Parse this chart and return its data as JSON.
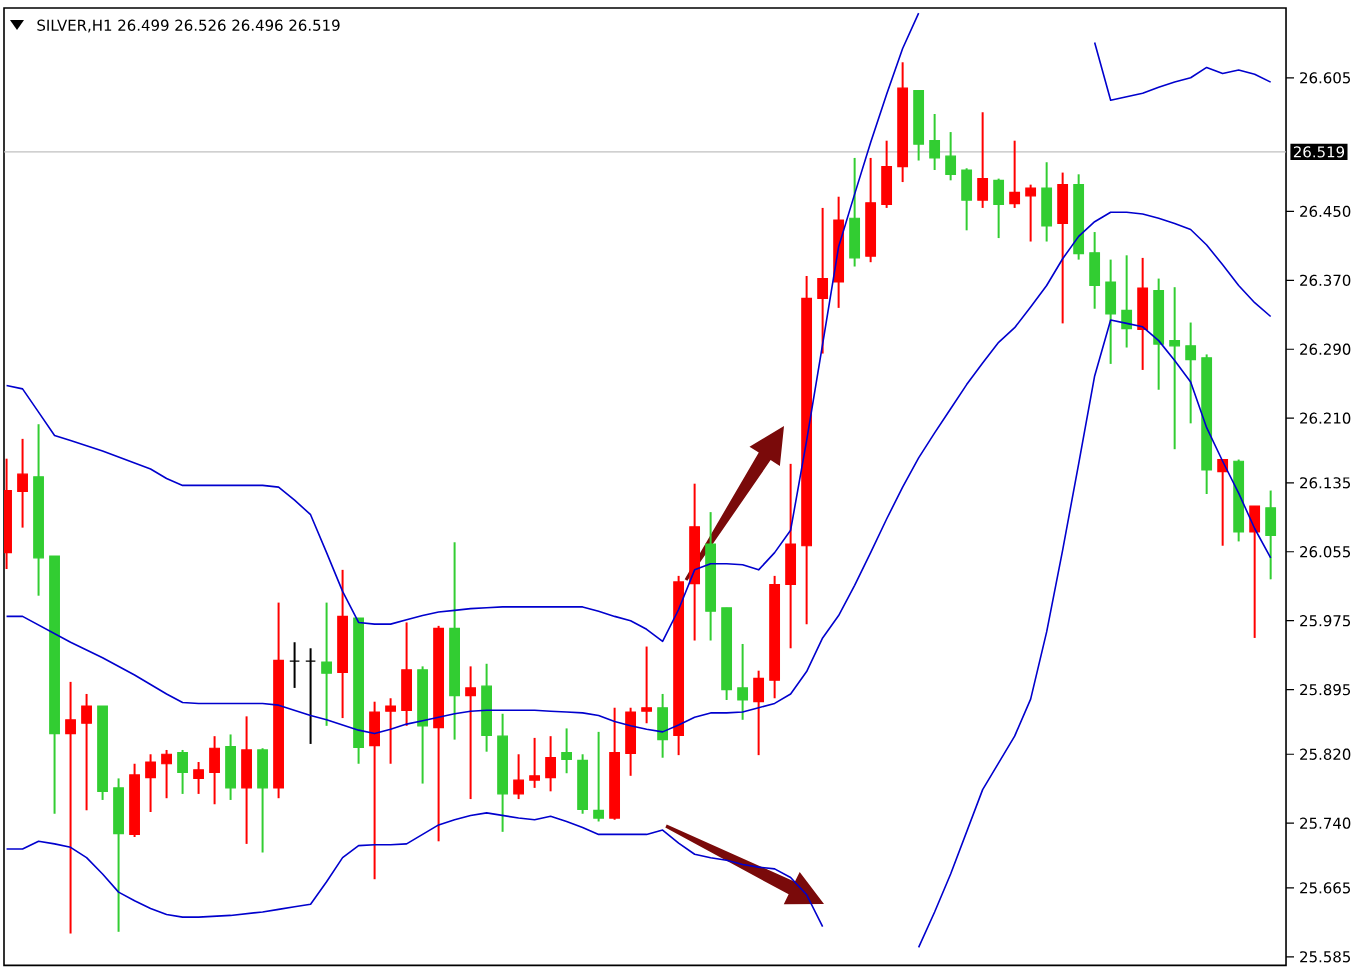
{
  "chart_data": {
    "type": "candlestick",
    "title": "SILVER,H1  26.499 26.526 26.496 26.519",
    "categories": [
      null,
      null,
      null,
      null,
      null,
      null,
      null,
      null,
      null,
      null,
      null,
      null,
      null,
      null,
      null,
      null,
      null,
      null,
      null,
      null,
      null,
      null,
      null,
      null,
      null,
      null,
      null,
      null,
      null,
      null,
      null,
      null,
      null,
      null,
      null,
      null,
      null,
      null,
      null,
      null,
      null,
      null,
      null,
      null,
      null,
      null,
      null,
      null,
      null,
      null,
      null,
      null,
      null,
      null,
      null,
      null,
      null,
      null,
      null,
      null,
      null,
      null,
      null,
      null,
      null,
      null,
      null,
      null,
      null,
      null,
      null,
      null,
      null,
      null,
      null,
      null,
      null,
      null,
      null,
      null
    ],
    "ohlc": [
      [
        26.054,
        26.163,
        26.035,
        26.126
      ],
      [
        26.125,
        26.186,
        26.083,
        26.145
      ],
      [
        26.142,
        26.203,
        26.004,
        26.048
      ],
      [
        26.05,
        26.05,
        25.751,
        25.844
      ],
      [
        25.844,
        25.904,
        25.612,
        25.86
      ],
      [
        25.856,
        25.89,
        25.755,
        25.876
      ],
      [
        25.876,
        25.876,
        25.767,
        25.777
      ],
      [
        25.781,
        25.792,
        25.614,
        25.728
      ],
      [
        25.727,
        25.809,
        25.724,
        25.796
      ],
      [
        25.793,
        25.82,
        25.753,
        25.811
      ],
      [
        25.809,
        25.825,
        25.769,
        25.82
      ],
      [
        25.822,
        25.825,
        25.774,
        25.799
      ],
      [
        25.792,
        25.811,
        25.774,
        25.802
      ],
      [
        25.799,
        25.841,
        25.762,
        25.827
      ],
      [
        25.829,
        25.843,
        25.767,
        25.781
      ],
      [
        25.781,
        25.864,
        25.716,
        25.825
      ],
      [
        25.825,
        25.827,
        25.706,
        25.781
      ],
      [
        25.781,
        25.996,
        25.769,
        25.929
      ],
      [
        25.928,
        25.95,
        25.897,
        25.928
      ],
      [
        25.928,
        25.943,
        25.832,
        25.928
      ],
      [
        25.927,
        25.996,
        25.853,
        25.914
      ],
      [
        25.915,
        26.034,
        25.862,
        25.98
      ],
      [
        25.978,
        25.978,
        25.809,
        25.828
      ],
      [
        25.83,
        25.881,
        25.675,
        25.869
      ],
      [
        25.87,
        25.885,
        25.809,
        25.876
      ],
      [
        25.871,
        25.973,
        25.853,
        25.918
      ],
      [
        25.918,
        25.922,
        25.786,
        25.853
      ],
      [
        25.851,
        25.969,
        25.719,
        25.966
      ],
      [
        25.966,
        26.066,
        25.837,
        25.888
      ],
      [
        25.888,
        25.922,
        25.768,
        25.897
      ],
      [
        25.899,
        25.925,
        25.823,
        25.842
      ],
      [
        25.841,
        25.867,
        25.73,
        25.774
      ],
      [
        25.774,
        25.82,
        25.768,
        25.79
      ],
      [
        25.79,
        25.839,
        25.781,
        25.795
      ],
      [
        25.793,
        25.841,
        25.777,
        25.816
      ],
      [
        25.822,
        25.85,
        25.798,
        25.814
      ],
      [
        25.813,
        25.82,
        25.751,
        25.756
      ],
      [
        25.755,
        25.846,
        25.742,
        25.746
      ],
      [
        25.746,
        25.874,
        25.744,
        25.822
      ],
      [
        25.821,
        25.874,
        25.795,
        25.869
      ],
      [
        25.87,
        25.945,
        25.856,
        25.874
      ],
      [
        25.874,
        25.89,
        25.816,
        25.837
      ],
      [
        25.842,
        26.027,
        25.819,
        26.02
      ],
      [
        26.018,
        26.134,
        25.952,
        26.084
      ],
      [
        26.064,
        26.101,
        25.952,
        25.986
      ],
      [
        25.99,
        25.99,
        25.883,
        25.895
      ],
      [
        25.897,
        25.948,
        25.86,
        25.883
      ],
      [
        25.881,
        25.917,
        25.819,
        25.908
      ],
      [
        25.906,
        26.027,
        25.885,
        26.017
      ],
      [
        26.017,
        26.157,
        25.943,
        26.064
      ],
      [
        26.062,
        26.375,
        25.971,
        26.349
      ],
      [
        26.349,
        26.454,
        26.285,
        26.372
      ],
      [
        26.368,
        26.467,
        26.338,
        26.44
      ],
      [
        26.442,
        26.512,
        26.386,
        26.396
      ],
      [
        26.398,
        26.512,
        26.391,
        26.46
      ],
      [
        26.458,
        26.532,
        26.454,
        26.502
      ],
      [
        26.502,
        26.623,
        26.484,
        26.593
      ],
      [
        26.59,
        26.59,
        26.509,
        26.528
      ],
      [
        26.532,
        26.563,
        26.498,
        26.512
      ],
      [
        26.514,
        26.542,
        26.486,
        26.493
      ],
      [
        26.498,
        26.5,
        26.428,
        26.463
      ],
      [
        26.463,
        26.565,
        26.454,
        26.488
      ],
      [
        26.486,
        26.488,
        26.419,
        26.458
      ],
      [
        26.459,
        26.532,
        26.454,
        26.472
      ],
      [
        26.468,
        26.481,
        26.415,
        26.477
      ],
      [
        26.477,
        26.507,
        26.415,
        26.433
      ],
      [
        26.436,
        26.495,
        26.32,
        26.481
      ],
      [
        26.481,
        26.493,
        26.394,
        26.401
      ],
      [
        26.402,
        26.426,
        26.337,
        26.364
      ],
      [
        26.368,
        26.394,
        26.273,
        26.331
      ],
      [
        26.335,
        26.399,
        26.292,
        26.314
      ],
      [
        26.313,
        26.396,
        26.266,
        26.361
      ],
      [
        26.358,
        26.372,
        26.243,
        26.296
      ],
      [
        26.3,
        26.362,
        26.174,
        26.294
      ],
      [
        26.294,
        26.321,
        26.204,
        26.278
      ],
      [
        26.28,
        26.284,
        26.122,
        26.15
      ],
      [
        26.148,
        26.162,
        26.062,
        26.162
      ],
      [
        26.16,
        26.162,
        26.067,
        26.078
      ],
      [
        26.078,
        26.108,
        25.955,
        26.108
      ],
      [
        26.106,
        26.126,
        26.023,
        26.074
      ]
    ],
    "colors": [
      "#ff0000",
      "#ff0000",
      "#32cd32",
      "#32cd32",
      "#ff0000",
      "#ff0000",
      "#32cd32",
      "#32cd32",
      "#ff0000",
      "#ff0000",
      "#ff0000",
      "#32cd32",
      "#ff0000",
      "#ff0000",
      "#32cd32",
      "#ff0000",
      "#32cd32",
      "#ff0000",
      "#000000",
      "#000000",
      "#32cd32",
      "#ff0000",
      "#32cd32",
      "#ff0000",
      "#ff0000",
      "#ff0000",
      "#32cd32",
      "#ff0000",
      "#32cd32",
      "#ff0000",
      "#32cd32",
      "#32cd32",
      "#ff0000",
      "#ff0000",
      "#ff0000",
      "#32cd32",
      "#32cd32",
      "#32cd32",
      "#ff0000",
      "#ff0000",
      "#ff0000",
      "#32cd32",
      "#ff0000",
      "#ff0000",
      "#32cd32",
      "#32cd32",
      "#32cd32",
      "#ff0000",
      "#ff0000",
      "#ff0000",
      "#ff0000",
      "#ff0000",
      "#ff0000",
      "#32cd32",
      "#ff0000",
      "#ff0000",
      "#ff0000",
      "#32cd32",
      "#32cd32",
      "#32cd32",
      "#32cd32",
      "#ff0000",
      "#32cd32",
      "#ff0000",
      "#ff0000",
      "#32cd32",
      "#ff0000",
      "#32cd32",
      "#32cd32",
      "#32cd32",
      "#32cd32",
      "#ff0000",
      "#32cd32",
      "#32cd32",
      "#32cd32",
      "#32cd32",
      "#ff0000",
      "#32cd32",
      "#ff0000",
      "#32cd32"
    ],
    "series": [
      {
        "type": "line",
        "color": "#0000cd",
        "values": [
          26.248,
          26.244,
          26.217,
          26.19,
          26.184,
          26.178,
          26.172,
          26.165,
          26.158,
          26.151,
          26.14,
          26.132,
          26.132,
          26.132,
          26.132,
          26.132,
          26.132,
          26.13,
          26.115,
          26.098,
          26.054,
          26.009,
          25.973,
          25.971,
          25.971,
          25.976,
          25.981,
          25.985,
          25.987,
          25.989,
          25.99,
          25.991,
          25.991,
          25.991,
          25.991,
          25.991,
          25.991,
          25.986,
          25.98,
          25.975,
          25.965,
          25.951,
          25.988,
          26.034,
          26.041,
          26.041,
          26.04,
          26.034,
          26.054,
          26.08,
          26.184,
          26.296,
          26.409,
          26.47,
          26.53,
          26.586,
          26.639,
          26.68,
          null,
          null,
          null,
          null,
          null,
          null,
          null,
          null,
          null,
          null,
          26.646,
          26.579,
          26.583,
          26.587,
          26.594,
          26.6,
          26.605,
          26.617,
          26.61,
          26.614,
          26.609,
          26.6
        ]
      },
      {
        "type": "line",
        "color": "#0000cd",
        "values": [
          25.98,
          25.98,
          25.97,
          25.96,
          25.95,
          25.941,
          25.932,
          25.922,
          25.912,
          25.901,
          25.89,
          25.88,
          25.879,
          25.879,
          25.879,
          25.879,
          25.879,
          25.877,
          25.871,
          25.865,
          25.86,
          25.854,
          25.848,
          25.844,
          25.849,
          25.855,
          25.859,
          25.863,
          25.867,
          25.87,
          25.871,
          25.871,
          25.871,
          25.871,
          25.87,
          25.869,
          25.868,
          25.865,
          25.858,
          25.853,
          25.849,
          25.846,
          25.854,
          25.863,
          25.868,
          25.868,
          25.869,
          25.874,
          25.879,
          25.89,
          25.916,
          25.955,
          25.981,
          26.016,
          26.054,
          26.093,
          26.13,
          26.164,
          26.193,
          26.221,
          26.249,
          26.274,
          26.298,
          26.315,
          26.339,
          26.364,
          26.395,
          26.421,
          26.438,
          26.449,
          26.449,
          26.447,
          26.442,
          26.436,
          26.429,
          26.411,
          26.388,
          26.364,
          26.344,
          26.328
        ]
      },
      {
        "type": "line",
        "color": "#0000cd",
        "values": [
          25.71,
          25.71,
          25.719,
          25.716,
          25.712,
          25.7,
          25.681,
          25.66,
          25.65,
          25.641,
          25.634,
          25.631,
          25.631,
          25.632,
          25.633,
          25.635,
          25.637,
          25.64,
          25.643,
          25.646,
          25.672,
          25.7,
          25.714,
          25.715,
          25.715,
          25.716,
          25.727,
          25.738,
          25.744,
          25.749,
          25.752,
          25.749,
          25.746,
          25.744,
          25.748,
          25.742,
          25.735,
          25.727,
          25.727,
          25.727,
          25.727,
          25.732,
          25.717,
          25.704,
          25.7,
          25.697,
          25.692,
          25.689,
          25.687,
          25.677,
          25.657,
          25.62,
          null,
          null,
          null,
          null,
          null,
          25.596,
          25.637,
          25.681,
          25.73,
          25.779,
          25.81,
          25.841,
          25.884,
          25.962,
          26.057,
          26.157,
          26.259,
          26.324,
          26.32,
          26.316,
          26.3,
          26.277,
          26.252,
          26.199,
          26.16,
          26.123,
          26.082,
          26.048
        ]
      }
    ],
    "ylim": [
      25.575,
      26.686
    ],
    "yticks": [
      {
        "value": 25.585,
        "label": "25.585"
      },
      {
        "value": 25.665,
        "label": "25.665"
      },
      {
        "value": 25.74,
        "label": "25.740"
      },
      {
        "value": 25.82,
        "label": "25.820"
      },
      {
        "value": 25.895,
        "label": "25.895"
      },
      {
        "value": 25.975,
        "label": "25.975"
      },
      {
        "value": 26.055,
        "label": "26.055"
      },
      {
        "value": 26.135,
        "label": "26.135"
      },
      {
        "value": 26.21,
        "label": "26.210"
      },
      {
        "value": 26.29,
        "label": "26.290"
      },
      {
        "value": 26.37,
        "label": "26.370"
      },
      {
        "value": 26.45,
        "label": "26.450"
      },
      {
        "value": 26.605,
        "label": "26.605"
      }
    ],
    "ref_lines": [
      {
        "axis": "y",
        "value": 26.519,
        "label": "26.519",
        "color": "#c0c0c0"
      }
    ]
  }
}
